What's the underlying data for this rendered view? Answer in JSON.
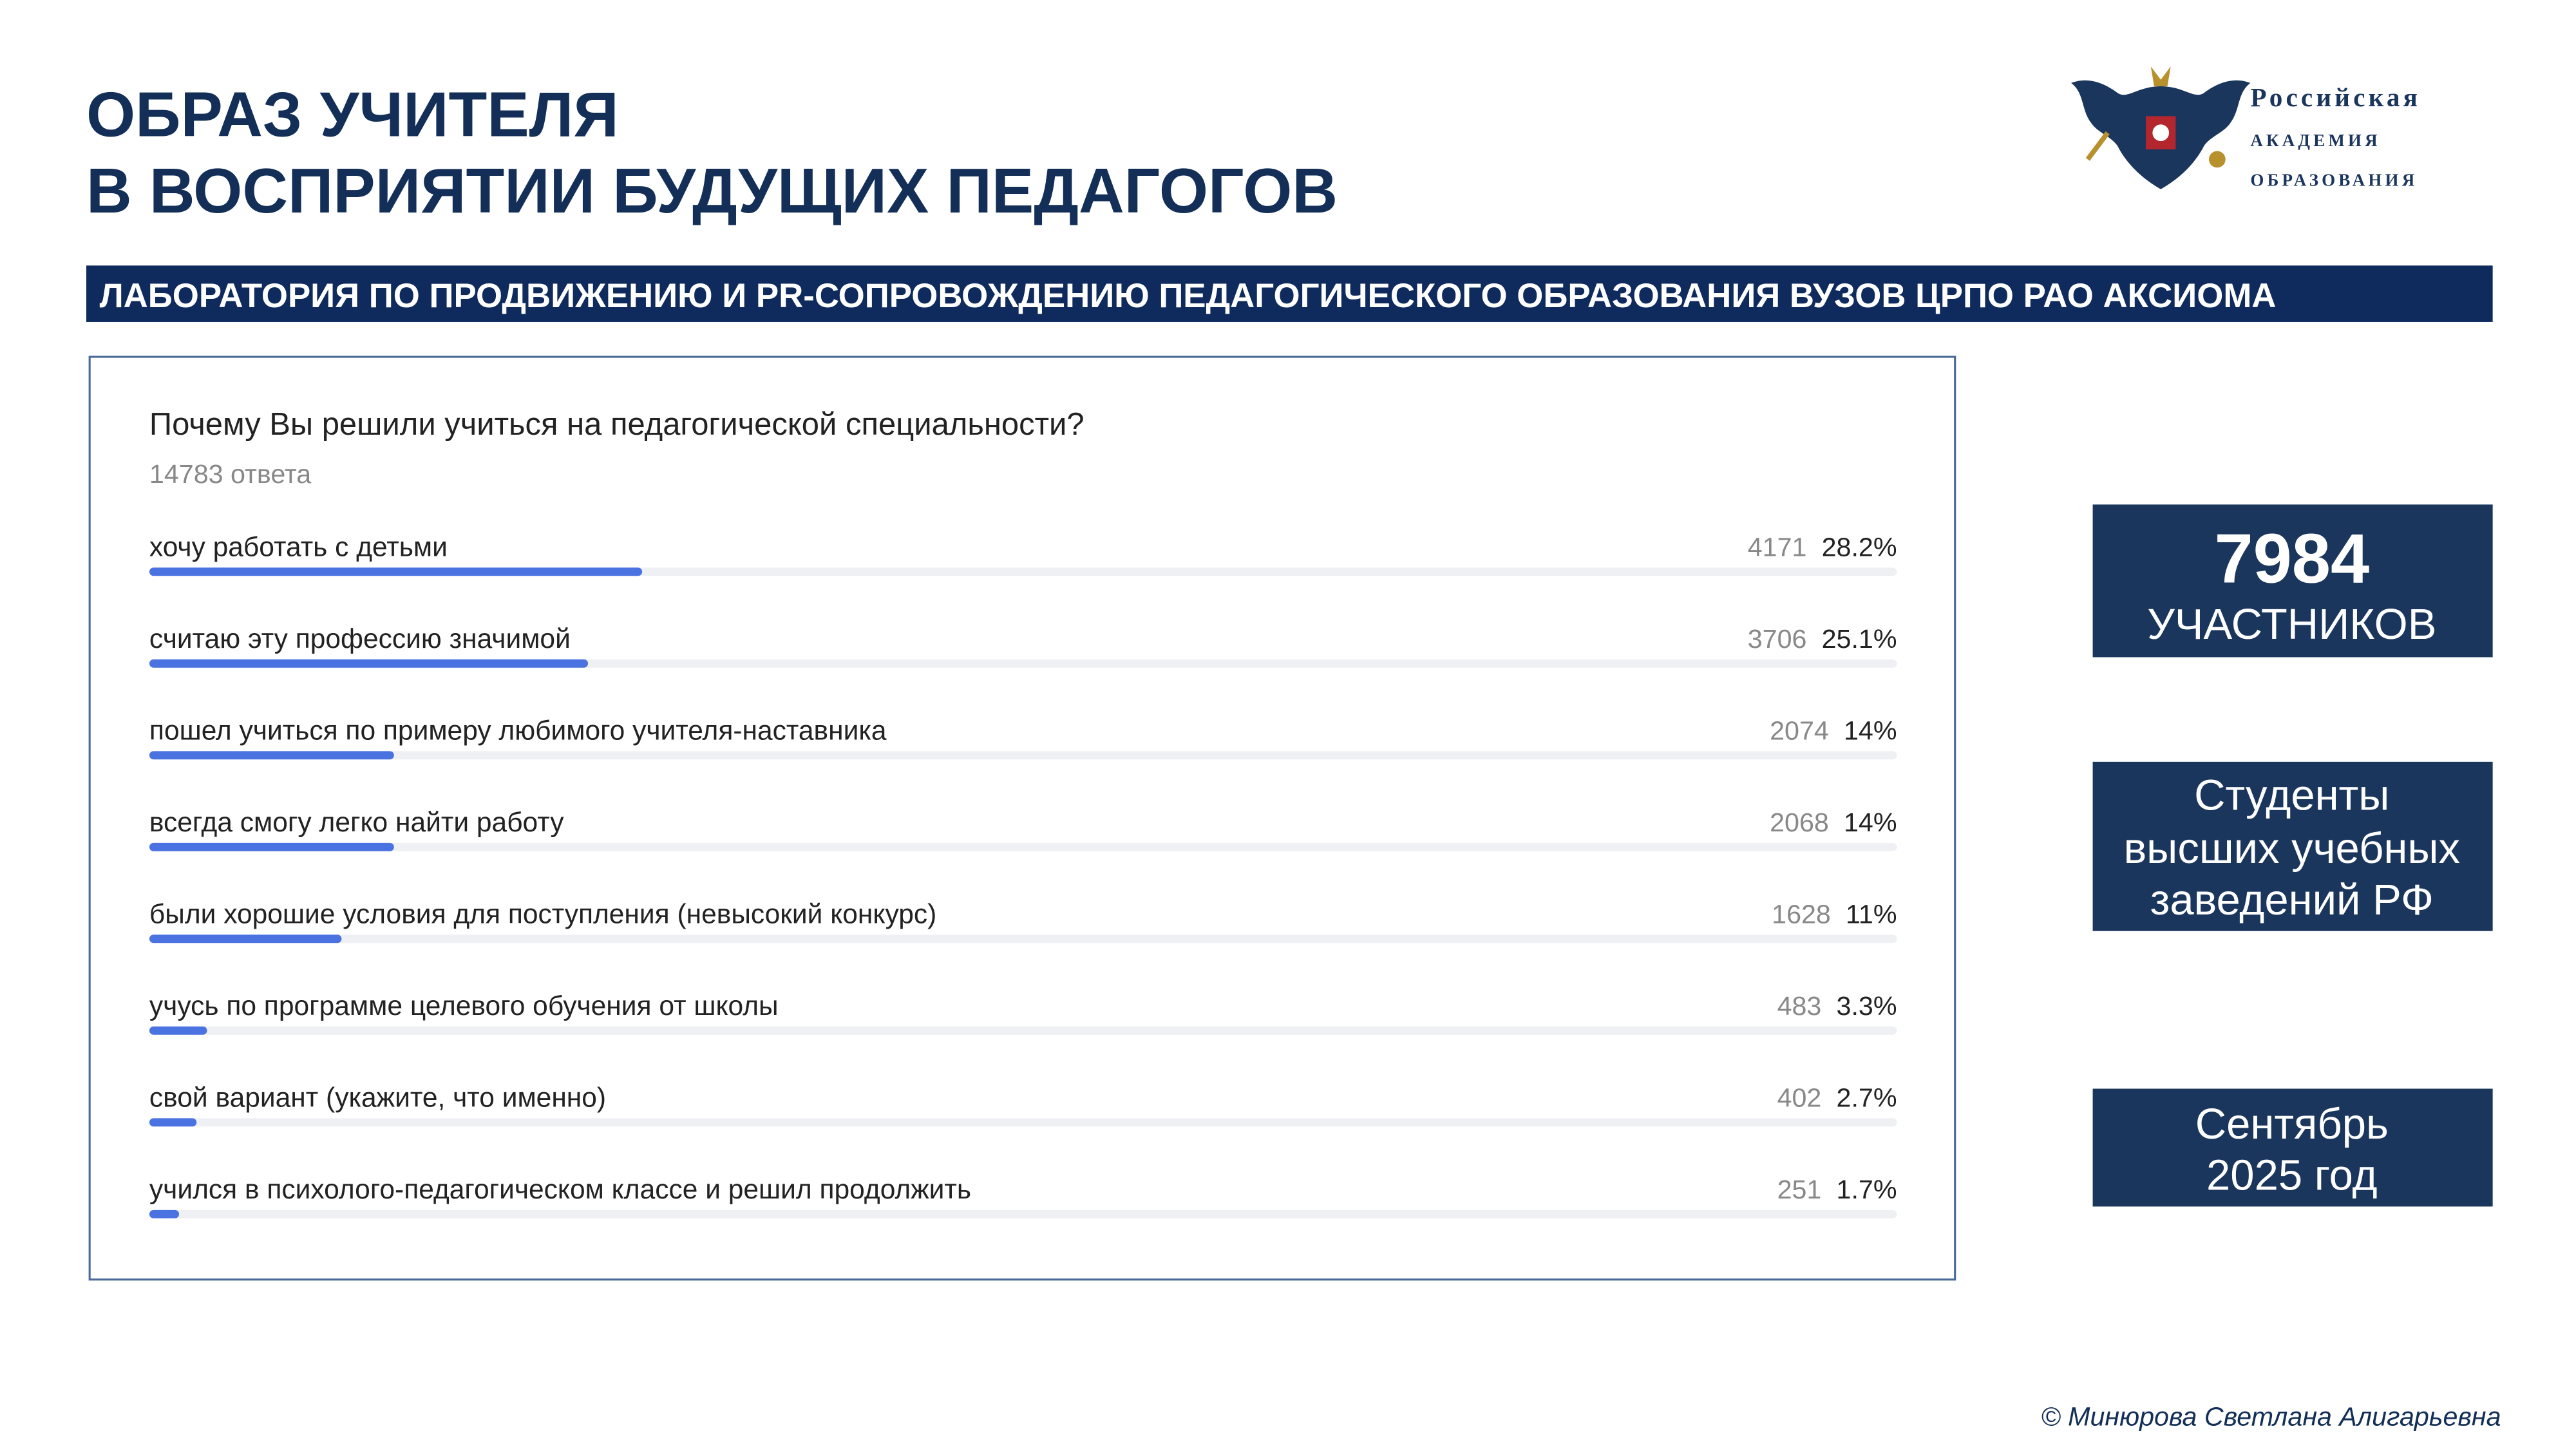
{
  "header": {
    "title_lines": [
      "ОБРАЗ УЧИТЕЛЯ",
      "В ВОСПРИЯТИИ БУДУЩИХ ПЕДАГОГОВ"
    ],
    "logo_lines": [
      "Российская",
      "академия",
      "образования"
    ]
  },
  "banner": "ЛАБОРАТОРИЯ ПО ПРОДВИЖЕНИЮ И PR-СОПРОВОЖДЕНИЮ ПЕДАГОГИЧЕСКОГО ОБРАЗОВАНИЯ ВУЗОВ ЦРПО РАО АКСИОМА",
  "chart_data": {
    "type": "bar",
    "title": "Почему Вы решили учиться на педагогической специальности?",
    "subtitle": "14783 ответа",
    "categories": [
      "хочу работать с детьми",
      "считаю эту профессию значимой",
      "пошел учиться по примеру любимого учителя-наставника",
      "всегда смогу легко найти работу",
      "были хорошие условия для поступления (невысокий конкурс)",
      "учусь по программе целевого обучения от школы",
      "свой вариант (укажите, что именно)",
      "учился в психолого-педагогическом классе и решил продолжить"
    ],
    "values": [
      28.2,
      25.1,
      14,
      14,
      11,
      3.3,
      2.7,
      1.7
    ],
    "value_labels": [
      "28.2%",
      "25.1%",
      "14%",
      "14%",
      "11%",
      "3.3%",
      "2.7%",
      "1.7%"
    ],
    "counts": [
      4171,
      3706,
      2074,
      2068,
      1628,
      483,
      402,
      251
    ],
    "color": "#4a72e0",
    "xlim": [
      0,
      100
    ]
  },
  "stats": [
    {
      "lines": [
        7984,
        "УЧАСТНИКОВ"
      ]
    },
    {
      "lines": [
        "Студенты",
        "высших учебных",
        "заведений РФ"
      ]
    },
    {
      "lines": [
        "Сентябрь",
        "2025 год"
      ]
    }
  ],
  "footer": "© Минюрова Светлана Алигарьевна"
}
